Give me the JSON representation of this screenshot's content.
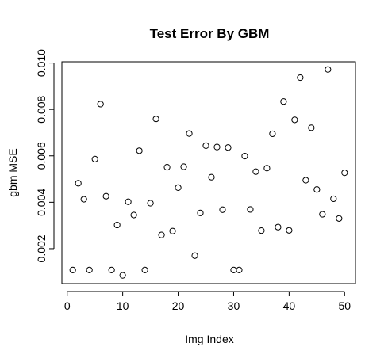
{
  "chart_data": {
    "type": "scatter",
    "title": "Test Error By GBM",
    "xlabel": "Img Index",
    "ylabel": "gbm MSE",
    "xlim": [
      1,
      50
    ],
    "ylim": [
      0.00085,
      0.0097
    ],
    "xticks": [
      0,
      10,
      20,
      30,
      40,
      50
    ],
    "xtick_labels": [
      "0",
      "10",
      "20",
      "30",
      "40",
      "50"
    ],
    "yticks": [
      0.002,
      0.004,
      0.006,
      0.008,
      0.01
    ],
    "ytick_labels": [
      "0.002",
      "0.004",
      "0.006",
      "0.008",
      "0.010"
    ],
    "grid": false,
    "marker": "open-circle",
    "point_color": "#000000",
    "x": [
      1,
      2,
      3,
      4,
      5,
      6,
      7,
      8,
      9,
      10,
      11,
      12,
      13,
      14,
      15,
      16,
      17,
      18,
      19,
      20,
      21,
      22,
      23,
      24,
      25,
      26,
      27,
      28,
      29,
      30,
      31,
      32,
      33,
      34,
      35,
      36,
      37,
      38,
      39,
      40,
      41,
      42,
      43,
      44,
      45,
      46,
      47,
      48,
      49,
      50
    ],
    "y": [
      0.00108,
      0.00482,
      0.00413,
      0.00108,
      0.00586,
      0.00823,
      0.00426,
      0.00108,
      0.00302,
      0.00085,
      0.00402,
      0.00345,
      0.00622,
      0.00108,
      0.00396,
      0.00759,
      0.00259,
      0.00551,
      0.00276,
      0.00463,
      0.00553,
      0.00696,
      0.0017,
      0.00354,
      0.00644,
      0.00508,
      0.00638,
      0.00368,
      0.00636,
      0.00108,
      0.00108,
      0.00599,
      0.00369,
      0.00532,
      0.00278,
      0.00547,
      0.00695,
      0.00293,
      0.00834,
      0.00279,
      0.00755,
      0.00937,
      0.00495,
      0.00721,
      0.00455,
      0.00348,
      0.00972,
      0.00415,
      0.0033,
      0.00527
    ]
  }
}
